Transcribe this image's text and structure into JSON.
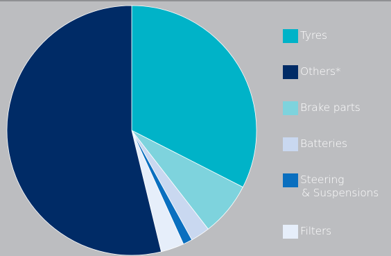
{
  "chart_data": {
    "type": "pie",
    "start_angle_deg": 0,
    "direction": "clockwise",
    "slices": [
      {
        "label": "Tyres",
        "value": 32.5,
        "color": "#00b3c8"
      },
      {
        "label": "Brake parts",
        "value": 7.0,
        "color": "#7ed3dd"
      },
      {
        "label": "Batteries",
        "value": 2.5,
        "color": "#c9d8f0"
      },
      {
        "label": "Steering & Suspensions",
        "value": 1.2,
        "color": "#0a6fbf"
      },
      {
        "label": "Filters",
        "value": 3.0,
        "color": "#e6eefa"
      },
      {
        "label": "Others*",
        "value": 53.8,
        "color": "#002b66"
      }
    ],
    "legend": {
      "placement": "right",
      "items": [
        {
          "label": "Tyres",
          "color": "#00b3c8"
        },
        {
          "label": "Others*",
          "color": "#002b66"
        },
        {
          "label": "Brake parts",
          "color": "#7ed3dd"
        },
        {
          "label": "Batteries",
          "color": "#c9d8f0"
        },
        {
          "label": "Steering",
          "label_line2": "& Suspensions",
          "color": "#0a6fbf"
        },
        {
          "label": "Filters",
          "color": "#e6eefa"
        }
      ]
    },
    "background_color": "#bcbdc0",
    "slice_border_color": "#ffffff"
  }
}
